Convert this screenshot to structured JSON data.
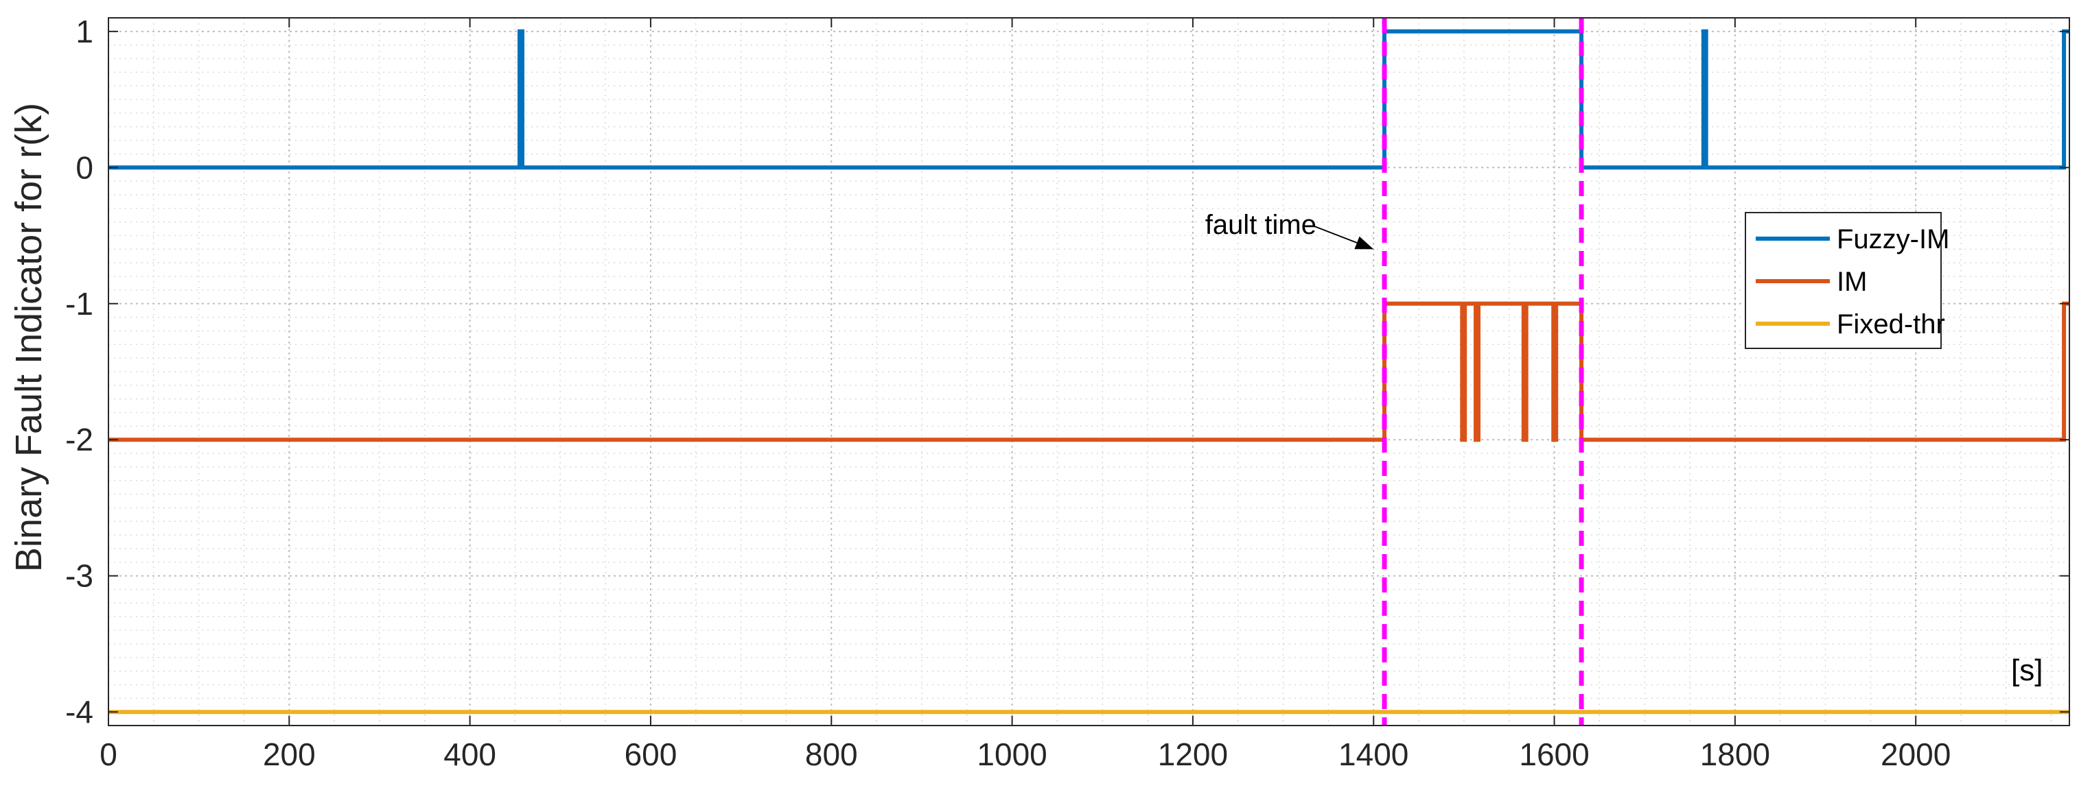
{
  "chart_data": {
    "type": "line",
    "title": "",
    "xlabel": "",
    "ylabel": "Binary Fault Indicator for  r(k)",
    "x_unit_label": "[s]",
    "xlim": [
      0,
      2170
    ],
    "ylim": [
      -4.1,
      1.1
    ],
    "x_ticks": [
      0,
      200,
      400,
      600,
      800,
      1000,
      1200,
      1400,
      1600,
      1800,
      2000
    ],
    "y_ticks": [
      1,
      0,
      -1,
      -2,
      -3,
      -4
    ],
    "grid": true,
    "legend_position": "right",
    "series": [
      {
        "name": "Fuzzy-IM",
        "color": "#0072BD",
        "x": [
          0,
          455,
          455,
          458,
          458,
          1412,
          1412,
          1630,
          1630,
          1765,
          1765,
          1768,
          1768,
          2164,
          2164,
          2170
        ],
        "y": [
          0,
          0,
          1,
          1,
          0,
          0,
          1,
          1,
          0,
          0,
          1,
          1,
          0,
          0,
          1,
          1
        ]
      },
      {
        "name": "IM",
        "color": "#D95319",
        "x": [
          0,
          1412,
          1412,
          1498,
          1498,
          1501,
          1501,
          1513,
          1513,
          1516,
          1516,
          1566,
          1566,
          1569,
          1569,
          1599,
          1599,
          1602,
          1602,
          1630,
          1630,
          2164,
          2164,
          2170
        ],
        "y": [
          -2,
          -2,
          -1,
          -1,
          -2,
          -2,
          -1,
          -1,
          -2,
          -2,
          -1,
          -1,
          -2,
          -2,
          -1,
          -1,
          -2,
          -2,
          -1,
          -1,
          -2,
          -2,
          -1,
          -1
        ]
      },
      {
        "name": "Fixed-thr",
        "color": "#EDB120",
        "x": [
          0,
          2170
        ],
        "y": [
          -4,
          -4
        ]
      }
    ],
    "vlines": [
      {
        "x": 1412,
        "color": "#FF00FF",
        "style": "dashed"
      },
      {
        "x": 1630,
        "color": "#FF00FF",
        "style": "dashed"
      }
    ],
    "annotations": [
      {
        "text": "fault time",
        "arrow_to": [
          1400,
          -0.6
        ]
      }
    ]
  }
}
